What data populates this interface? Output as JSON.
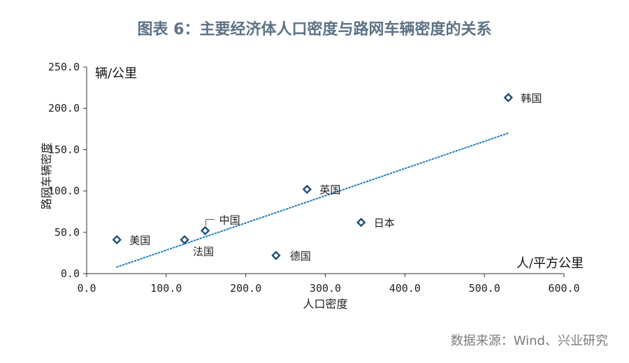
{
  "title": "图表 6：主要经济体人口密度与路网车辆密度的关系",
  "source": "数据来源：Wind、兴业研究",
  "chart_data": {
    "type": "scatter",
    "xlabel": "人口密度",
    "ylabel": "路网车辆密度",
    "x_unit": "人/平方公里",
    "y_unit": "辆/公里",
    "xlim": [
      0,
      600
    ],
    "ylim": [
      0,
      250
    ],
    "x_ticks": [
      "0.0",
      "100.0",
      "200.0",
      "300.0",
      "400.0",
      "500.0",
      "600.0"
    ],
    "y_ticks": [
      "0.0",
      "50.0",
      "100.0",
      "150.0",
      "200.0",
      "250.0"
    ],
    "points": [
      {
        "label": "美国",
        "x": 38,
        "y": 41
      },
      {
        "label": "法国",
        "x": 123,
        "y": 41
      },
      {
        "label": "中国",
        "x": 149,
        "y": 52
      },
      {
        "label": "德国",
        "x": 238,
        "y": 22
      },
      {
        "label": "英国",
        "x": 277,
        "y": 102
      },
      {
        "label": "日本",
        "x": 345,
        "y": 62
      },
      {
        "label": "韩国",
        "x": 530,
        "y": 213
      }
    ],
    "trendline": {
      "x": [
        38,
        530
      ],
      "y": [
        8,
        170
      ]
    },
    "colors": {
      "marker": "#1f4e79",
      "trend": "#2e86c1"
    }
  }
}
